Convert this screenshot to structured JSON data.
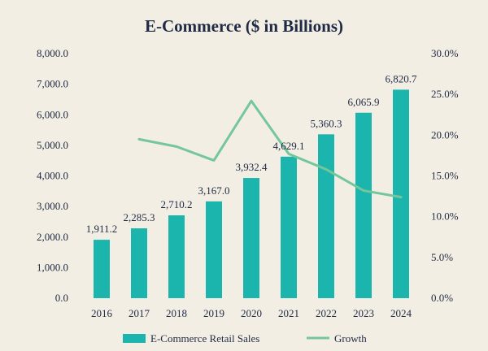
{
  "chart_data": {
    "type": "bar",
    "title": "E-Commerce ($ in Billions)",
    "categories": [
      "2016",
      "2017",
      "2018",
      "2019",
      "2020",
      "2021",
      "2022",
      "2023",
      "2024"
    ],
    "series": [
      {
        "name": "E-Commerce Retail Sales",
        "type": "bar",
        "axis": "left",
        "color": "#1cb5ad",
        "values": [
          1911.2,
          2285.3,
          2710.2,
          3167.0,
          3932.4,
          4629.1,
          5360.3,
          6065.9,
          6820.7
        ],
        "labels": [
          "1,911.2",
          "2,285.3",
          "2,710.2",
          "3,167.0",
          "3,932.4",
          "4,629.1",
          "5,360.3",
          "6,065.9",
          "6,820.7"
        ]
      },
      {
        "name": "Growth",
        "type": "line",
        "axis": "right",
        "color": "#74c69d",
        "values": [
          null,
          19.5,
          18.6,
          16.9,
          24.2,
          17.7,
          15.8,
          13.2,
          12.4
        ]
      }
    ],
    "y_left": {
      "min": 0,
      "max": 8000,
      "ticks": [
        0,
        1000,
        2000,
        3000,
        4000,
        5000,
        6000,
        7000,
        8000
      ],
      "tick_labels": [
        "0.0",
        "1,000.0",
        "2,000.0",
        "3,000.0",
        "4,000.0",
        "5,000.0",
        "6,000.0",
        "7,000.0",
        "8,000.0"
      ]
    },
    "y_right": {
      "min": 0,
      "max": 30,
      "ticks": [
        0,
        5,
        10,
        15,
        20,
        25,
        30
      ],
      "tick_labels": [
        "0.0%",
        "5.0%",
        "10.0%",
        "15.0%",
        "20.0%",
        "25.0%",
        "30.0%"
      ]
    },
    "grid": false,
    "legend_position": "bottom",
    "background": "#f3eee4",
    "text_color": "#1f2a44"
  }
}
